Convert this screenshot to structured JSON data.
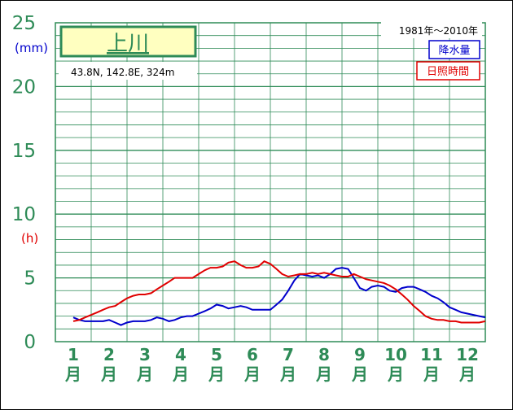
{
  "station": {
    "name": "上川",
    "location": "43.8N, 142.8E, 324m",
    "period": "1981年～2010年"
  },
  "units": {
    "precip": "(mm)",
    "sun": "(h)"
  },
  "colors": {
    "grid": "#2e8b57",
    "precip": "#0000cc",
    "sun": "#e00000",
    "title_box_fill": "#ffffc0",
    "axis_text": "#2e8b57"
  },
  "chart_data": {
    "type": "line",
    "title": "上川",
    "ylim": [
      0,
      25
    ],
    "y_ticks": [
      0,
      5,
      10,
      15,
      20,
      25
    ],
    "categories": [
      "1月",
      "2月",
      "3月",
      "4月",
      "5月",
      "6月",
      "7月",
      "8月",
      "9月",
      "10月",
      "11月",
      "12月"
    ],
    "category_numbers": [
      "1",
      "2",
      "3",
      "4",
      "5",
      "6",
      "7",
      "8",
      "9",
      "10",
      "11",
      "12"
    ],
    "month_char": "月",
    "legend": {
      "position": "top-right"
    },
    "series": [
      {
        "name": "降水量",
        "unit": "(mm)",
        "x": [
          1,
          1.17,
          1.33,
          1.5,
          1.67,
          1.83,
          2,
          2.17,
          2.33,
          2.5,
          2.67,
          2.83,
          3,
          3.17,
          3.33,
          3.5,
          3.67,
          3.83,
          4,
          4.17,
          4.33,
          4.5,
          4.67,
          4.83,
          5,
          5.17,
          5.33,
          5.5,
          5.67,
          5.83,
          6,
          6.17,
          6.33,
          6.5,
          6.67,
          6.83,
          7,
          7.17,
          7.33,
          7.5,
          7.67,
          7.83,
          8,
          8.17,
          8.33,
          8.5,
          8.67,
          8.83,
          9,
          9.17,
          9.33,
          9.5,
          9.67,
          9.83,
          10,
          10.17,
          10.33,
          10.5,
          10.67,
          10.83,
          11,
          11.17,
          11.33,
          11.5,
          11.67,
          11.83,
          12,
          12.17,
          12.33,
          12.5
        ],
        "values": [
          1.9,
          1.7,
          1.6,
          1.6,
          1.6,
          1.6,
          1.7,
          1.5,
          1.3,
          1.5,
          1.6,
          1.6,
          1.6,
          1.7,
          1.9,
          1.8,
          1.6,
          1.7,
          1.9,
          2.0,
          2.0,
          2.2,
          2.4,
          2.6,
          2.9,
          2.8,
          2.6,
          2.7,
          2.8,
          2.7,
          2.5,
          2.5,
          2.5,
          2.5,
          2.9,
          3.3,
          4.0,
          4.8,
          5.3,
          5.2,
          5.1,
          5.2,
          5.0,
          5.3,
          5.7,
          5.8,
          5.7,
          5.0,
          4.2,
          4.0,
          4.3,
          4.4,
          4.3,
          4.0,
          3.9,
          4.2,
          4.3,
          4.3,
          4.1,
          3.9,
          3.6,
          3.4,
          3.1,
          2.7,
          2.5,
          2.3,
          2.2,
          2.1,
          2.0,
          1.9
        ]
      },
      {
        "name": "日照時間",
        "unit": "(h)",
        "x": [
          1,
          1.17,
          1.33,
          1.5,
          1.67,
          1.83,
          2,
          2.17,
          2.33,
          2.5,
          2.67,
          2.83,
          3,
          3.17,
          3.33,
          3.5,
          3.67,
          3.83,
          4,
          4.17,
          4.33,
          4.5,
          4.67,
          4.83,
          5,
          5.17,
          5.33,
          5.5,
          5.67,
          5.83,
          6,
          6.17,
          6.33,
          6.5,
          6.67,
          6.83,
          7,
          7.17,
          7.33,
          7.5,
          7.67,
          7.83,
          8,
          8.17,
          8.33,
          8.5,
          8.67,
          8.83,
          9,
          9.17,
          9.33,
          9.5,
          9.67,
          9.83,
          10,
          10.17,
          10.33,
          10.5,
          10.67,
          10.83,
          11,
          11.17,
          11.33,
          11.5,
          11.67,
          11.83,
          12,
          12.17,
          12.33,
          12.5
        ],
        "values": [
          1.6,
          1.7,
          1.9,
          2.1,
          2.3,
          2.5,
          2.7,
          2.8,
          3.1,
          3.4,
          3.6,
          3.7,
          3.7,
          3.8,
          4.1,
          4.4,
          4.7,
          5.0,
          5.0,
          5.0,
          5.0,
          5.3,
          5.6,
          5.8,
          5.8,
          5.9,
          6.2,
          6.3,
          6.0,
          5.8,
          5.8,
          5.9,
          6.3,
          6.1,
          5.7,
          5.3,
          5.1,
          5.2,
          5.3,
          5.3,
          5.4,
          5.3,
          5.4,
          5.3,
          5.2,
          5.1,
          5.1,
          5.3,
          5.1,
          4.9,
          4.8,
          4.7,
          4.6,
          4.4,
          4.1,
          3.7,
          3.3,
          2.8,
          2.4,
          2.0,
          1.8,
          1.7,
          1.7,
          1.6,
          1.6,
          1.5,
          1.5,
          1.5,
          1.5,
          1.6
        ]
      }
    ]
  }
}
